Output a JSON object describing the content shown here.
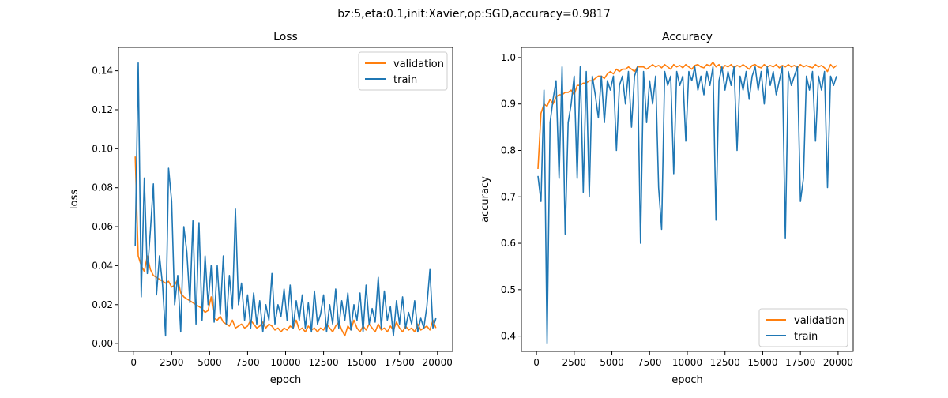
{
  "suptitle": "bz:5,eta:0.1,init:Xavier,op:SGD,accuracy=0.9817",
  "colors": {
    "validation": "#ff7f0e",
    "train": "#1f77b4"
  },
  "chart_data": [
    {
      "type": "line",
      "title": "Loss",
      "xlabel": "epoch",
      "ylabel": "loss",
      "xlim": [
        -1000,
        21000
      ],
      "ylim": [
        -0.004,
        0.152
      ],
      "xticks": [
        0,
        2500,
        5000,
        7500,
        10000,
        12500,
        15000,
        17500,
        20000
      ],
      "yticks": [
        0.0,
        0.02,
        0.04,
        0.06,
        0.08,
        0.1,
        0.12,
        0.14
      ],
      "ytick_decimals": 2,
      "legend": "top-right",
      "x_start": 100,
      "x_step": 200,
      "series": [
        {
          "name": "validation",
          "color": "#ff7f0e",
          "values": [
            0.096,
            0.045,
            0.04,
            0.037,
            0.045,
            0.038,
            0.035,
            0.034,
            0.033,
            0.032,
            0.031,
            0.032,
            0.029,
            0.03,
            0.033,
            0.026,
            0.024,
            0.023,
            0.022,
            0.021,
            0.02,
            0.019,
            0.018,
            0.016,
            0.017,
            0.024,
            0.013,
            0.012,
            0.014,
            0.011,
            0.01,
            0.009,
            0.012,
            0.008,
            0.009,
            0.01,
            0.008,
            0.009,
            0.012,
            0.01,
            0.008,
            0.009,
            0.011,
            0.008,
            0.01,
            0.009,
            0.007,
            0.008,
            0.006,
            0.008,
            0.007,
            0.009,
            0.008,
            0.012,
            0.007,
            0.008,
            0.006,
            0.009,
            0.007,
            0.008,
            0.006,
            0.008,
            0.007,
            0.01,
            0.008,
            0.006,
            0.009,
            0.011,
            0.007,
            0.004,
            0.009,
            0.007,
            0.012,
            0.008,
            0.006,
            0.009,
            0.007,
            0.01,
            0.008,
            0.006,
            0.01,
            0.007,
            0.008,
            0.006,
            0.009,
            0.007,
            0.011,
            0.008,
            0.006,
            0.009,
            0.007,
            0.008,
            0.006,
            0.01,
            0.007,
            0.008,
            0.009,
            0.007,
            0.012,
            0.008
          ]
        },
        {
          "name": "train",
          "color": "#1f77b4",
          "values": [
            0.05,
            0.144,
            0.024,
            0.085,
            0.036,
            0.058,
            0.082,
            0.025,
            0.045,
            0.03,
            0.004,
            0.09,
            0.073,
            0.02,
            0.035,
            0.006,
            0.06,
            0.047,
            0.021,
            0.063,
            0.01,
            0.062,
            0.012,
            0.045,
            0.02,
            0.04,
            0.011,
            0.04,
            0.015,
            0.045,
            0.01,
            0.035,
            0.018,
            0.069,
            0.02,
            0.031,
            0.012,
            0.025,
            0.008,
            0.026,
            0.01,
            0.022,
            0.006,
            0.02,
            0.012,
            0.036,
            0.01,
            0.02,
            0.014,
            0.028,
            0.012,
            0.03,
            0.008,
            0.022,
            0.012,
            0.025,
            0.008,
            0.021,
            0.006,
            0.027,
            0.01,
            0.015,
            0.025,
            0.006,
            0.02,
            0.01,
            0.028,
            0.008,
            0.022,
            0.012,
            0.026,
            0.007,
            0.02,
            0.012,
            0.026,
            0.006,
            0.03,
            0.01,
            0.018,
            0.011,
            0.034,
            0.008,
            0.027,
            0.012,
            0.019,
            0.004,
            0.022,
            0.01,
            0.024,
            0.008,
            0.016,
            0.01,
            0.022,
            0.006,
            0.013,
            0.008,
            0.019,
            0.038,
            0.008,
            0.013
          ]
        }
      ]
    },
    {
      "type": "line",
      "title": "Accuracy",
      "xlabel": "epoch",
      "ylabel": "accuracy",
      "xlim": [
        -1000,
        21000
      ],
      "ylim": [
        0.367,
        1.022
      ],
      "xticks": [
        0,
        2500,
        5000,
        7500,
        10000,
        12500,
        15000,
        17500,
        20000
      ],
      "yticks": [
        0.4,
        0.5,
        0.6,
        0.7,
        0.8,
        0.9,
        1.0
      ],
      "ytick_decimals": 1,
      "legend": "lower-right",
      "x_start": 100,
      "x_step": 200,
      "series": [
        {
          "name": "validation",
          "color": "#ff7f0e",
          "values": [
            0.76,
            0.88,
            0.9,
            0.895,
            0.91,
            0.9,
            0.915,
            0.92,
            0.92,
            0.925,
            0.925,
            0.93,
            0.92,
            0.94,
            0.94,
            0.945,
            0.945,
            0.95,
            0.95,
            0.955,
            0.96,
            0.96,
            0.955,
            0.965,
            0.97,
            0.965,
            0.975,
            0.97,
            0.975,
            0.975,
            0.98,
            0.975,
            0.97,
            0.98,
            0.98,
            0.98,
            0.975,
            0.98,
            0.985,
            0.98,
            0.983,
            0.978,
            0.985,
            0.98,
            0.975,
            0.985,
            0.98,
            0.983,
            0.978,
            0.985,
            0.98,
            0.975,
            0.983,
            0.985,
            0.98,
            0.978,
            0.985,
            0.982,
            0.99,
            0.98,
            0.985,
            0.975,
            0.983,
            0.98,
            0.985,
            0.978,
            0.983,
            0.98,
            0.985,
            0.98,
            0.975,
            0.983,
            0.985,
            0.98,
            0.978,
            0.985,
            0.98,
            0.983,
            0.98,
            0.985,
            0.978,
            0.983,
            0.98,
            0.985,
            0.98,
            0.983,
            0.978,
            0.985,
            0.98,
            0.983,
            0.98,
            0.978,
            0.985,
            0.98,
            0.983,
            0.978,
            0.97,
            0.985,
            0.978,
            0.983
          ]
        },
        {
          "name": "train",
          "color": "#1f77b4",
          "values": [
            0.745,
            0.69,
            0.93,
            0.385,
            0.86,
            0.91,
            0.95,
            0.74,
            0.98,
            0.62,
            0.86,
            0.9,
            0.96,
            0.74,
            0.98,
            0.71,
            0.97,
            0.7,
            0.96,
            0.92,
            0.87,
            0.96,
            0.86,
            0.95,
            0.93,
            0.96,
            0.8,
            0.94,
            0.96,
            0.9,
            0.97,
            0.85,
            0.96,
            0.98,
            0.6,
            0.97,
            0.86,
            0.95,
            0.9,
            0.96,
            0.72,
            0.63,
            0.97,
            0.94,
            0.96,
            0.75,
            0.97,
            0.94,
            0.96,
            0.82,
            0.97,
            0.95,
            0.98,
            0.93,
            0.96,
            0.92,
            0.97,
            0.94,
            0.98,
            0.65,
            0.95,
            0.98,
            0.93,
            0.97,
            0.94,
            0.98,
            0.8,
            0.96,
            0.93,
            0.97,
            0.91,
            0.96,
            0.98,
            0.93,
            0.97,
            0.9,
            0.98,
            0.94,
            0.97,
            0.92,
            0.95,
            0.98,
            0.61,
            0.97,
            0.94,
            0.96,
            0.98,
            0.69,
            0.74,
            0.96,
            0.93,
            0.97,
            0.82,
            0.96,
            0.93,
            0.97,
            0.72,
            0.96,
            0.94,
            0.96
          ]
        }
      ]
    }
  ]
}
